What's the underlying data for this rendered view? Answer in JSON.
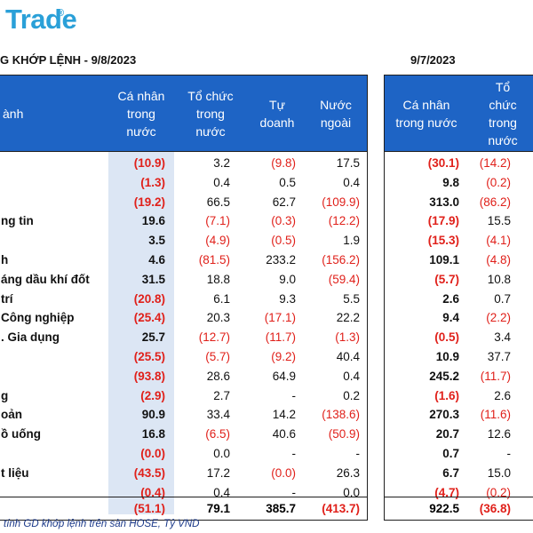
{
  "logo": {
    "text": "Trade",
    "mark": "®",
    "color": "#2aa0d8"
  },
  "title_left": "G KHỚP LỆNH - 9/8/2023",
  "title_right": "9/7/2023",
  "colors": {
    "header_bg": "#1e64c5",
    "highlight_col": "#dce6f4",
    "negative": "#e0201a"
  },
  "left_table": {
    "headers": [
      "ành",
      "Cá nhân\ntrong\nnước",
      "Tổ chức\ntrong\nnước",
      "Tự\ndoanh",
      "Nước\nngoài"
    ],
    "rows": [
      {
        "name": "",
        "values": [
          "(10.9)",
          "3.2",
          "(9.8)",
          "17.5"
        ]
      },
      {
        "name": "",
        "values": [
          "(1.3)",
          "0.4",
          "0.5",
          "0.4"
        ]
      },
      {
        "name": "",
        "values": [
          "(19.2)",
          "66.5",
          "62.7",
          "(109.9)"
        ]
      },
      {
        "name": "ng tin",
        "values": [
          "19.6",
          "(7.1)",
          "(0.3)",
          "(12.2)"
        ]
      },
      {
        "name": "",
        "values": [
          "3.5",
          "(4.9)",
          "(0.5)",
          "1.9"
        ]
      },
      {
        "name": "h",
        "values": [
          "4.6",
          "(81.5)",
          "233.2",
          "(156.2)"
        ]
      },
      {
        "name": "áng dầu khí đốt",
        "values": [
          "31.5",
          "18.8",
          "9.0",
          "(59.4)"
        ]
      },
      {
        "name": "trí",
        "values": [
          "(20.8)",
          "6.1",
          "9.3",
          "5.5"
        ]
      },
      {
        "name": "Công nghiệp",
        "values": [
          "(25.4)",
          "20.3",
          "(17.1)",
          "22.2"
        ]
      },
      {
        "name": ". Gia dụng",
        "values": [
          "25.7",
          "(12.7)",
          "(11.7)",
          "(1.3)"
        ]
      },
      {
        "name": "",
        "values": [
          "(25.5)",
          "(5.7)",
          "(9.2)",
          "40.4"
        ]
      },
      {
        "name": "",
        "values": [
          "(93.8)",
          "28.6",
          "64.9",
          "0.4"
        ]
      },
      {
        "name": "g",
        "values": [
          "(2.9)",
          "2.7",
          "-",
          "0.2"
        ]
      },
      {
        "name": "oản",
        "values": [
          "90.9",
          "33.4",
          "14.2",
          "(138.6)"
        ]
      },
      {
        "name": "ồ uống",
        "values": [
          "16.8",
          "(6.5)",
          "40.6",
          "(50.9)"
        ]
      },
      {
        "name": "",
        "values": [
          "(0.0)",
          "0.0",
          "-",
          "-"
        ]
      },
      {
        "name": "t liệu",
        "values": [
          "(43.5)",
          "17.2",
          "(0.0)",
          "26.3"
        ]
      },
      {
        "name": "",
        "values": [
          "(0.4)",
          "0.4",
          "-",
          "0.0"
        ]
      }
    ],
    "total": [
      "(51.1)",
      "79.1",
      "385.7",
      "(413.7)"
    ]
  },
  "right_table": {
    "headers": [
      "Cá nhân\ntrong nước",
      "Tổ\nchức\ntrong\nnước"
    ],
    "rows": [
      [
        "(30.1)",
        "(14.2)"
      ],
      [
        "9.8",
        "(0.2)"
      ],
      [
        "313.0",
        "(86.2)"
      ],
      [
        "(17.9)",
        "15.5"
      ],
      [
        "(15.3)",
        "(4.1)"
      ],
      [
        "109.1",
        "(4.8)"
      ],
      [
        "(5.7)",
        "10.8"
      ],
      [
        "2.6",
        "0.7"
      ],
      [
        "9.4",
        "(2.2)"
      ],
      [
        "(0.5)",
        "3.4"
      ],
      [
        "10.9",
        "37.7"
      ],
      [
        "245.2",
        "(11.7)"
      ],
      [
        "(1.6)",
        "2.6"
      ],
      [
        "270.3",
        "(11.6)"
      ],
      [
        "20.7",
        "12.6"
      ],
      [
        "0.7",
        "-"
      ],
      [
        "6.7",
        "15.0"
      ],
      [
        "(4.7)",
        "(0.2)"
      ]
    ],
    "total": [
      "922.5",
      "(36.8)"
    ]
  },
  "footnote": "tính GD khớp lệnh trên sàn HOSE, Tỷ VND"
}
